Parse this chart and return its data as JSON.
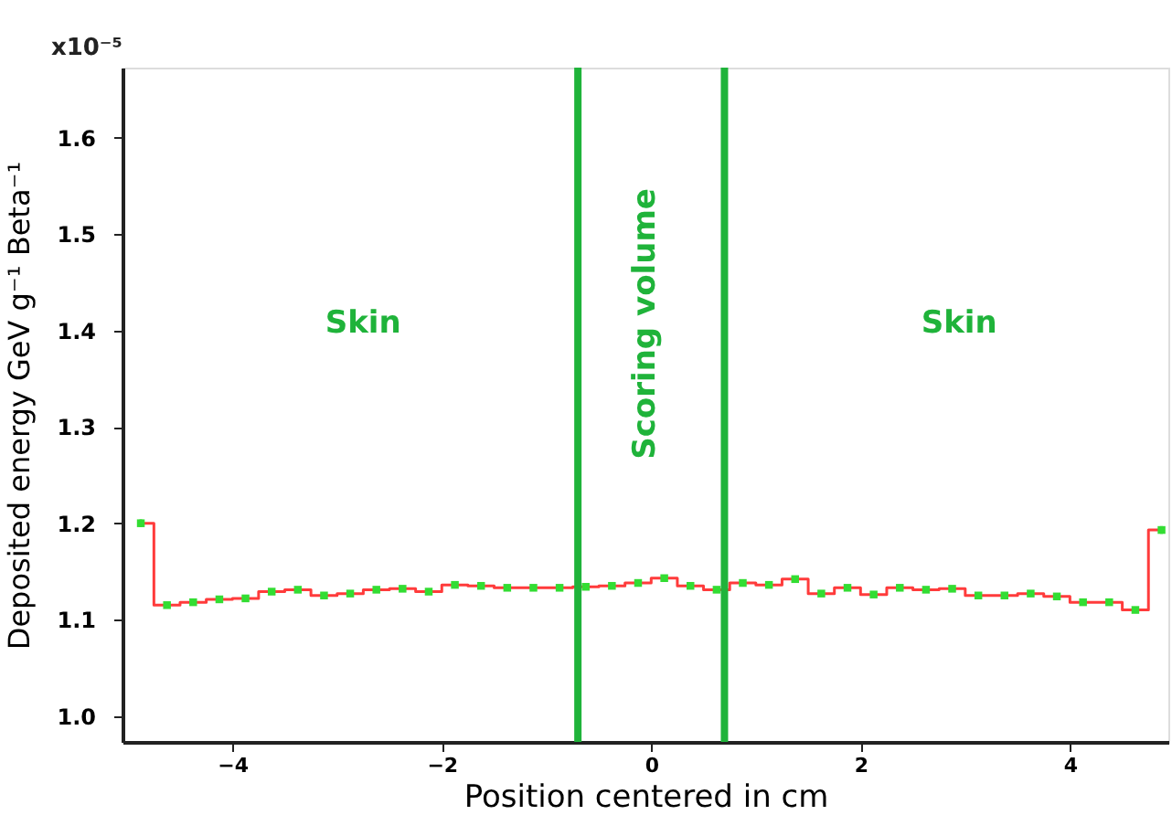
{
  "chart_data": {
    "type": "step",
    "xlabel": "Position centered in cm",
    "ylabel": "Deposited energy GeV g⁻¹ Beta⁻¹",
    "x": [
      -4.875,
      -4.625,
      -4.375,
      -4.125,
      -3.875,
      -3.625,
      -3.375,
      -3.125,
      -2.875,
      -2.625,
      -2.375,
      -2.125,
      -1.875,
      -1.625,
      -1.375,
      -1.125,
      -0.875,
      -0.625,
      -0.375,
      -0.125,
      0.125,
      0.375,
      0.625,
      0.875,
      1.125,
      1.375,
      1.625,
      1.875,
      2.125,
      2.375,
      2.625,
      2.875,
      3.125,
      3.375,
      3.625,
      3.875,
      4.125,
      4.375,
      4.625,
      4.875
    ],
    "series": [
      {
        "color": "#ff3b3b",
        "values": [
          1.2,
          1.115,
          1.118,
          1.121,
          1.122,
          1.129,
          1.131,
          1.125,
          1.127,
          1.131,
          1.132,
          1.129,
          1.136,
          1.135,
          1.133,
          1.133,
          1.133,
          1.134,
          1.135,
          1.138,
          1.143,
          1.135,
          1.131,
          1.138,
          1.136,
          1.142,
          1.127,
          1.133,
          1.126,
          1.133,
          1.131,
          1.132,
          1.125,
          1.125,
          1.127,
          1.124,
          1.118,
          1.118,
          1.11,
          1.193
        ]
      },
      {
        "type": "scatter",
        "color": "#33dd33",
        "marker": "square",
        "values": [
          1.2,
          1.115,
          1.118,
          1.121,
          1.122,
          1.129,
          1.131,
          1.125,
          1.127,
          1.131,
          1.132,
          1.129,
          1.136,
          1.135,
          1.133,
          1.133,
          1.133,
          1.134,
          1.135,
          1.138,
          1.143,
          1.135,
          1.131,
          1.138,
          1.136,
          1.142,
          1.127,
          1.133,
          1.126,
          1.133,
          1.131,
          1.132,
          1.125,
          1.125,
          1.127,
          1.124,
          1.118,
          1.118,
          1.11,
          1.193
        ],
        "errors": [
          0.004,
          0.003,
          0.003,
          0.003,
          0.003,
          0.003,
          0.003,
          0.003,
          0.003,
          0.003,
          0.003,
          0.003,
          0.003,
          0.003,
          0.003,
          0.003,
          0.003,
          0.003,
          0.003,
          0.003,
          0.003,
          0.003,
          0.003,
          0.003,
          0.003,
          0.003,
          0.003,
          0.003,
          0.003,
          0.003,
          0.003,
          0.003,
          0.003,
          0.003,
          0.003,
          0.003,
          0.003,
          0.003,
          0.003,
          0.004
        ]
      }
    ],
    "xlim": [
      -5.05,
      4.94
    ],
    "xticks": [
      -4,
      -2,
      0,
      2,
      4
    ],
    "ylim": [
      0.973,
      1.673
    ],
    "yticks": [
      {
        "value": 1.0,
        "label": "1.0"
      },
      1.1,
      1.2,
      1.3,
      1.4,
      1.5,
      1.6
    ],
    "ref_lines": [
      {
        "axis": "x",
        "value": -0.7,
        "color": "#1fb33a"
      },
      {
        "axis": "x",
        "value": 0.7,
        "color": "#1fb33a"
      }
    ],
    "annotations": [
      "x10⁻⁵",
      "Skin",
      "Scoring volume",
      "Skin"
    ],
    "grid": false
  }
}
